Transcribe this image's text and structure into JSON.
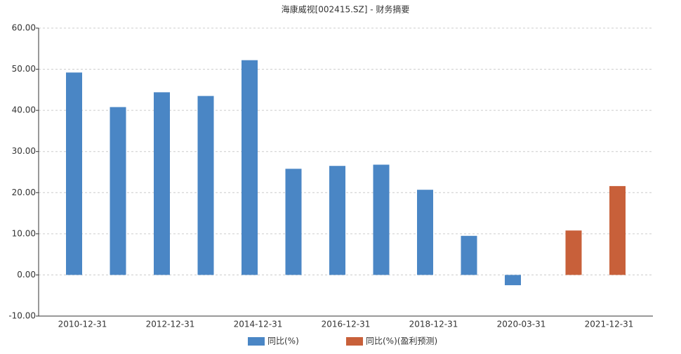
{
  "chart_data": {
    "type": "bar",
    "title": "海康威视[002415.SZ] - 财务摘要",
    "categories": [
      "2010-12-31",
      null,
      "2012-12-31",
      null,
      "2014-12-31",
      null,
      "2016-12-31",
      null,
      "2018-12-31",
      null,
      "2020-03-31",
      null,
      "2021-12-31"
    ],
    "series": [
      {
        "name": "同比(%)",
        "color": "#4a86c5",
        "values": [
          49.2,
          40.8,
          44.4,
          43.5,
          52.2,
          25.8,
          26.5,
          26.8,
          20.7,
          9.5,
          -2.5,
          null,
          null
        ]
      },
      {
        "name": "同比(%)(盈利预测)",
        "color": "#c8603a",
        "values": [
          null,
          null,
          null,
          null,
          null,
          null,
          null,
          null,
          null,
          null,
          null,
          10.8,
          21.6
        ]
      }
    ],
    "ylim": [
      -10,
      60
    ],
    "yticks": [
      {
        "value": -10,
        "label": "-10.00"
      },
      {
        "value": 0,
        "label": "0.00"
      },
      {
        "value": 10,
        "label": "10.00"
      },
      {
        "value": 20,
        "label": "20.00"
      },
      {
        "value": 30,
        "label": "30.00"
      },
      {
        "value": 40,
        "label": "40.00"
      },
      {
        "value": 50,
        "label": "50.00"
      },
      {
        "value": 60,
        "label": "60.00"
      }
    ],
    "grid": true
  }
}
